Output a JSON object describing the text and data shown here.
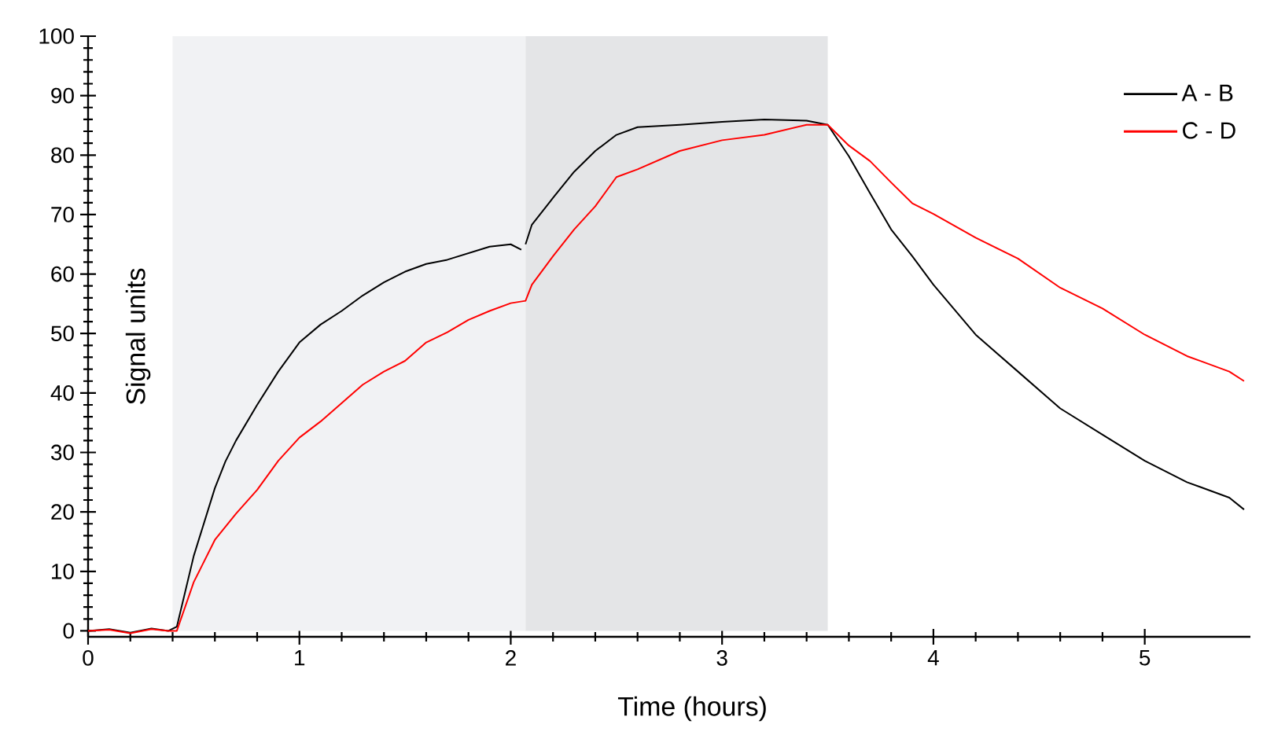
{
  "chart_data": {
    "type": "line",
    "xlabel": "Time (hours)",
    "ylabel": "Signal units",
    "xlim": [
      0,
      5.5
    ],
    "ylim": [
      -1,
      100
    ],
    "xticks": [
      0,
      1,
      2,
      3,
      4,
      5
    ],
    "yticks": [
      0,
      10,
      20,
      30,
      40,
      50,
      60,
      70,
      80,
      90,
      100
    ],
    "legend": "top right",
    "marker": "none",
    "line_style": "solid",
    "bands": [
      {
        "axis": "x",
        "from": 0.4,
        "to": 2.07,
        "color": "#f1f2f4"
      },
      {
        "axis": "x",
        "from": 2.07,
        "to": 3.5,
        "color": "#e4e5e7"
      }
    ],
    "series": [
      {
        "name": "A - B",
        "color": "#000000",
        "x": [
          0,
          0.1,
          0.2,
          0.3,
          0.38,
          0.42,
          0.5,
          0.6,
          0.65,
          0.7,
          0.8,
          0.9,
          1.0,
          1.1,
          1.2,
          1.3,
          1.4,
          1.5,
          1.6,
          1.7,
          1.8,
          1.9,
          2.0,
          2.05,
          2.06,
          2.07,
          2.1,
          2.2,
          2.3,
          2.4,
          2.5,
          2.6,
          2.8,
          3.0,
          3.2,
          3.4,
          3.5,
          3.6,
          3.7,
          3.8,
          3.9,
          4.0,
          4.2,
          4.4,
          4.6,
          4.8,
          5.0,
          5.2,
          5.4,
          5.47
        ],
        "values": [
          0,
          0.3,
          -0.3,
          0.4,
          0,
          0.7,
          12.6,
          24,
          28.5,
          32,
          38,
          43.6,
          48.5,
          51.5,
          53.8,
          56.4,
          58.6,
          60.4,
          61.7,
          62.4,
          63.5,
          64.6,
          65,
          64.1,
          null,
          65,
          68.3,
          72.8,
          77.2,
          80.7,
          83.4,
          84.7,
          85.1,
          85.6,
          86,
          85.8,
          85.1,
          79.8,
          73.6,
          67.5,
          63,
          58.2,
          49.8,
          43.6,
          37.4,
          33,
          28.6,
          25,
          22.4,
          20.4
        ]
      },
      {
        "name": "C - D",
        "color": "#ff0000",
        "x": [
          0,
          0.1,
          0.2,
          0.3,
          0.38,
          0.42,
          0.5,
          0.6,
          0.7,
          0.8,
          0.9,
          1.0,
          1.1,
          1.2,
          1.3,
          1.4,
          1.5,
          1.6,
          1.7,
          1.8,
          1.9,
          2.0,
          2.07,
          2.1,
          2.2,
          2.3,
          2.4,
          2.5,
          2.6,
          2.8,
          3.0,
          3.2,
          3.4,
          3.5,
          3.6,
          3.7,
          3.8,
          3.9,
          4.0,
          4.2,
          4.4,
          4.6,
          4.8,
          5.0,
          5.2,
          5.4,
          5.47
        ],
        "values": [
          0,
          0.2,
          -0.4,
          0.3,
          0,
          0,
          8.2,
          15.3,
          19.7,
          23.7,
          28.6,
          32.5,
          35.2,
          38.3,
          41.4,
          43.6,
          45.4,
          48.5,
          50.2,
          52.3,
          53.8,
          55.1,
          55.5,
          58.2,
          63,
          67.5,
          71.4,
          76.3,
          77.6,
          80.7,
          82.5,
          83.4,
          85.1,
          85.1,
          81.6,
          79,
          75.4,
          71.9,
          70.1,
          66.1,
          62.6,
          57.7,
          54.2,
          49.8,
          46.2,
          43.6,
          42
        ]
      }
    ]
  }
}
